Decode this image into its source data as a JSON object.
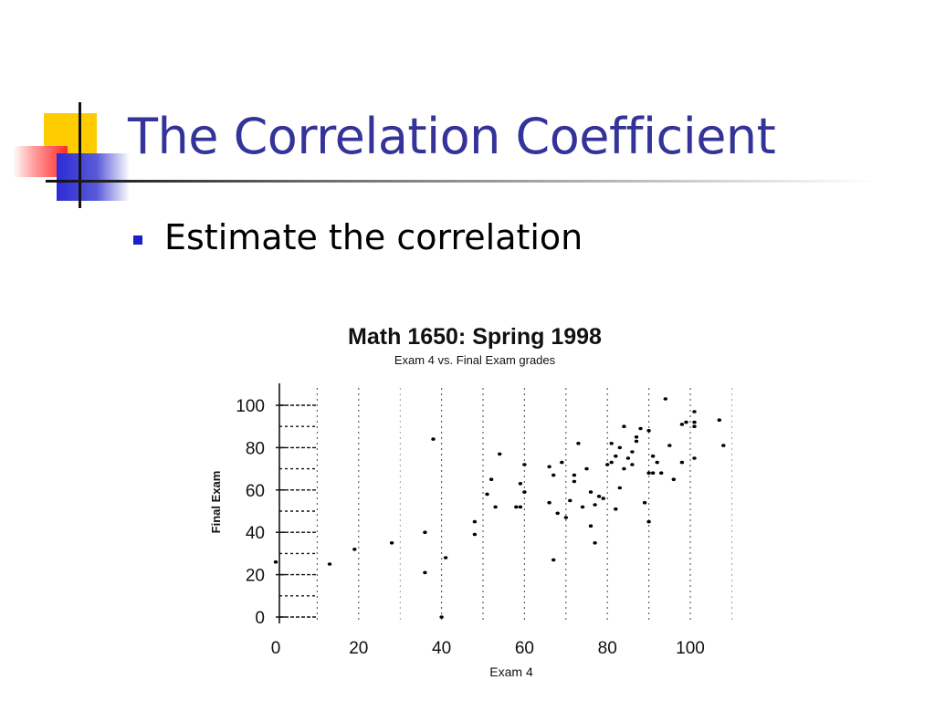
{
  "slide": {
    "title": "The Correlation Coefficient",
    "bullet": "Estimate the correlation"
  },
  "colors": {
    "title": "#333399",
    "bullet": "#1d1dcc",
    "logo_yellow": "#ffcc00",
    "logo_red": "#ff2b2b",
    "logo_blue": "#2b2bd6"
  },
  "chart_data": {
    "type": "scatter",
    "title": "Math 1650: Spring 1998",
    "subtitle": "Exam 4 vs. Final Exam grades",
    "xlabel": "Exam 4",
    "ylabel": "Final Exam",
    "xlim": [
      0,
      110
    ],
    "ylim": [
      0,
      105
    ],
    "x_ticks": [
      0,
      20,
      40,
      60,
      80,
      100
    ],
    "y_ticks": [
      0,
      20,
      40,
      60,
      80,
      100
    ],
    "x_tick_labels": [
      "0",
      "20",
      "40",
      "60",
      "80",
      "100"
    ],
    "y_tick_labels": [
      "0",
      "20",
      "40",
      "60",
      "80",
      "100"
    ],
    "grid": "vertical dotted lines every 10",
    "legend": "none",
    "points": [
      {
        "x": 0,
        "y": 26
      },
      {
        "x": 13,
        "y": 25
      },
      {
        "x": 19,
        "y": 32
      },
      {
        "x": 28,
        "y": 35
      },
      {
        "x": 36,
        "y": 21
      },
      {
        "x": 36,
        "y": 40
      },
      {
        "x": 38,
        "y": 84
      },
      {
        "x": 40,
        "y": 0
      },
      {
        "x": 41,
        "y": 28
      },
      {
        "x": 48,
        "y": 39
      },
      {
        "x": 48,
        "y": 45
      },
      {
        "x": 51,
        "y": 58
      },
      {
        "x": 52,
        "y": 65
      },
      {
        "x": 53,
        "y": 52
      },
      {
        "x": 54,
        "y": 77
      },
      {
        "x": 58,
        "y": 52
      },
      {
        "x": 59,
        "y": 63
      },
      {
        "x": 59,
        "y": 52
      },
      {
        "x": 60,
        "y": 72
      },
      {
        "x": 60,
        "y": 59
      },
      {
        "x": 66,
        "y": 54
      },
      {
        "x": 66,
        "y": 71
      },
      {
        "x": 67,
        "y": 67
      },
      {
        "x": 67,
        "y": 27
      },
      {
        "x": 68,
        "y": 49
      },
      {
        "x": 69,
        "y": 73
      },
      {
        "x": 70,
        "y": 47
      },
      {
        "x": 71,
        "y": 55
      },
      {
        "x": 72,
        "y": 64
      },
      {
        "x": 72,
        "y": 67
      },
      {
        "x": 73,
        "y": 82
      },
      {
        "x": 74,
        "y": 52
      },
      {
        "x": 75,
        "y": 70
      },
      {
        "x": 76,
        "y": 43
      },
      {
        "x": 76,
        "y": 59
      },
      {
        "x": 77,
        "y": 53
      },
      {
        "x": 77,
        "y": 35
      },
      {
        "x": 78,
        "y": 57
      },
      {
        "x": 79,
        "y": 56
      },
      {
        "x": 80,
        "y": 72
      },
      {
        "x": 81,
        "y": 73
      },
      {
        "x": 81,
        "y": 82
      },
      {
        "x": 82,
        "y": 76
      },
      {
        "x": 82,
        "y": 51
      },
      {
        "x": 83,
        "y": 61
      },
      {
        "x": 83,
        "y": 80
      },
      {
        "x": 84,
        "y": 70
      },
      {
        "x": 84,
        "y": 90
      },
      {
        "x": 85,
        "y": 75
      },
      {
        "x": 86,
        "y": 78
      },
      {
        "x": 86,
        "y": 72
      },
      {
        "x": 87,
        "y": 83
      },
      {
        "x": 87,
        "y": 85
      },
      {
        "x": 88,
        "y": 89
      },
      {
        "x": 89,
        "y": 54
      },
      {
        "x": 90,
        "y": 88
      },
      {
        "x": 90,
        "y": 45
      },
      {
        "x": 90,
        "y": 68
      },
      {
        "x": 91,
        "y": 76
      },
      {
        "x": 91,
        "y": 68
      },
      {
        "x": 92,
        "y": 73
      },
      {
        "x": 93,
        "y": 68
      },
      {
        "x": 94,
        "y": 103
      },
      {
        "x": 95,
        "y": 81
      },
      {
        "x": 96,
        "y": 65
      },
      {
        "x": 98,
        "y": 91
      },
      {
        "x": 98,
        "y": 73
      },
      {
        "x": 99,
        "y": 92
      },
      {
        "x": 101,
        "y": 90
      },
      {
        "x": 101,
        "y": 92
      },
      {
        "x": 101,
        "y": 97
      },
      {
        "x": 101,
        "y": 75
      },
      {
        "x": 107,
        "y": 93
      },
      {
        "x": 108,
        "y": 81
      }
    ]
  }
}
